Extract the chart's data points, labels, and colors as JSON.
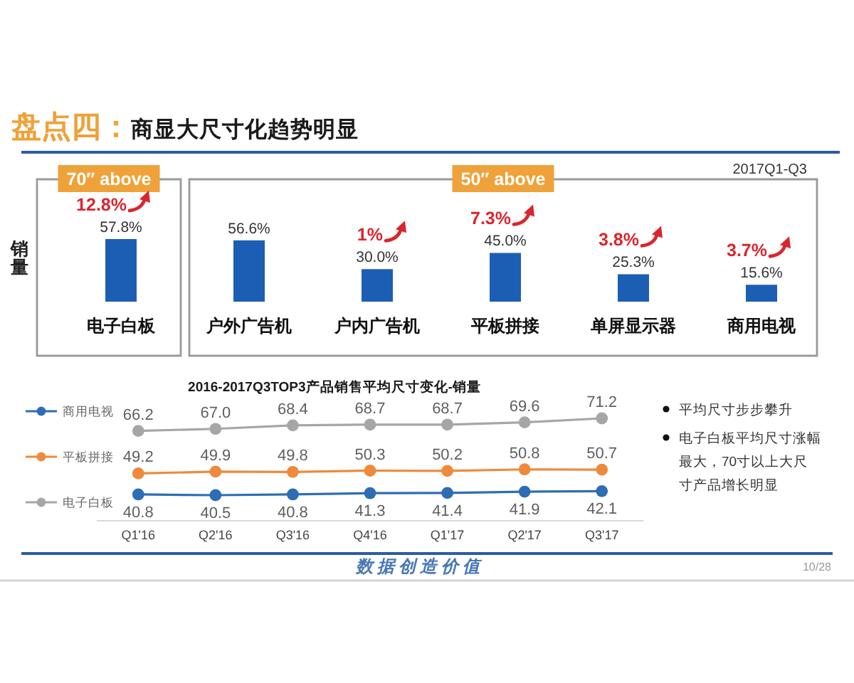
{
  "chart_data": [
    {
      "type": "bar",
      "title": "盘点四：商显大尺寸化趋势明显",
      "subtitle": "2017Q1-Q3",
      "ylabel": "销量",
      "categories": [
        "电子白板",
        "户外广告机",
        "户内广告机",
        "平板拼接",
        "单屏显示器",
        "商用电视"
      ],
      "values": [
        57.8,
        56.6,
        30.0,
        45.0,
        25.3,
        15.6
      ],
      "value_labels": [
        "57.8%",
        "56.6%",
        "30.0%",
        "45.0%",
        "25.3%",
        "15.6%"
      ],
      "color": "#1d5eb5",
      "annotations": [
        "70″ above",
        "50″ above",
        {
          "text": "12.8%",
          "x": "电子白板",
          "y": 57.8
        },
        {
          "text": "1%",
          "x": "户内广告机",
          "y": 30.0
        },
        {
          "text": "7.3%",
          "x": "平板拼接",
          "y": 45.0
        },
        {
          "text": "3.8%",
          "x": "单屏显示器",
          "y": 25.3
        },
        {
          "text": "3.7%",
          "x": "商用电视",
          "y": 15.6
        }
      ]
    },
    {
      "type": "line",
      "title": "2016-2017Q3TOP3产品销售平均尺寸变化-销量",
      "categories": [
        "Q1'16",
        "Q2'16",
        "Q3'16",
        "Q4'16",
        "Q1'17",
        "Q2'17",
        "Q3'17"
      ],
      "series": [
        {
          "name": "商用电视",
          "color": "#2e6db4",
          "values": [
            40.8,
            40.5,
            40.8,
            41.3,
            41.4,
            41.9,
            42.1
          ],
          "value_labels": [
            "40.8",
            "40.5",
            "40.8",
            "41.3",
            "41.4",
            "41.9",
            "42.1"
          ]
        },
        {
          "name": "平板拼接",
          "color": "#ee8a3c",
          "values": [
            49.2,
            49.9,
            49.8,
            50.3,
            50.2,
            50.8,
            50.7
          ],
          "value_labels": [
            "49.2",
            "49.9",
            "49.8",
            "50.3",
            "50.2",
            "50.8",
            "50.7"
          ]
        },
        {
          "name": "电子白板",
          "color": "#a6a6a6",
          "values": [
            66.2,
            67.0,
            68.4,
            68.7,
            68.7,
            69.6,
            71.2
          ],
          "value_labels": [
            "66.2",
            "67.0",
            "68.4",
            "68.7",
            "68.7",
            "69.6",
            "71.2"
          ]
        }
      ],
      "marker": "circle",
      "legend": "left",
      "annotations": [
        "平均尺寸步步攀升",
        "电子白板平均尺寸涨幅最大，70寸以上大尺寸产品增长明显",
        "数据创造价值",
        "10/28"
      ]
    }
  ]
}
